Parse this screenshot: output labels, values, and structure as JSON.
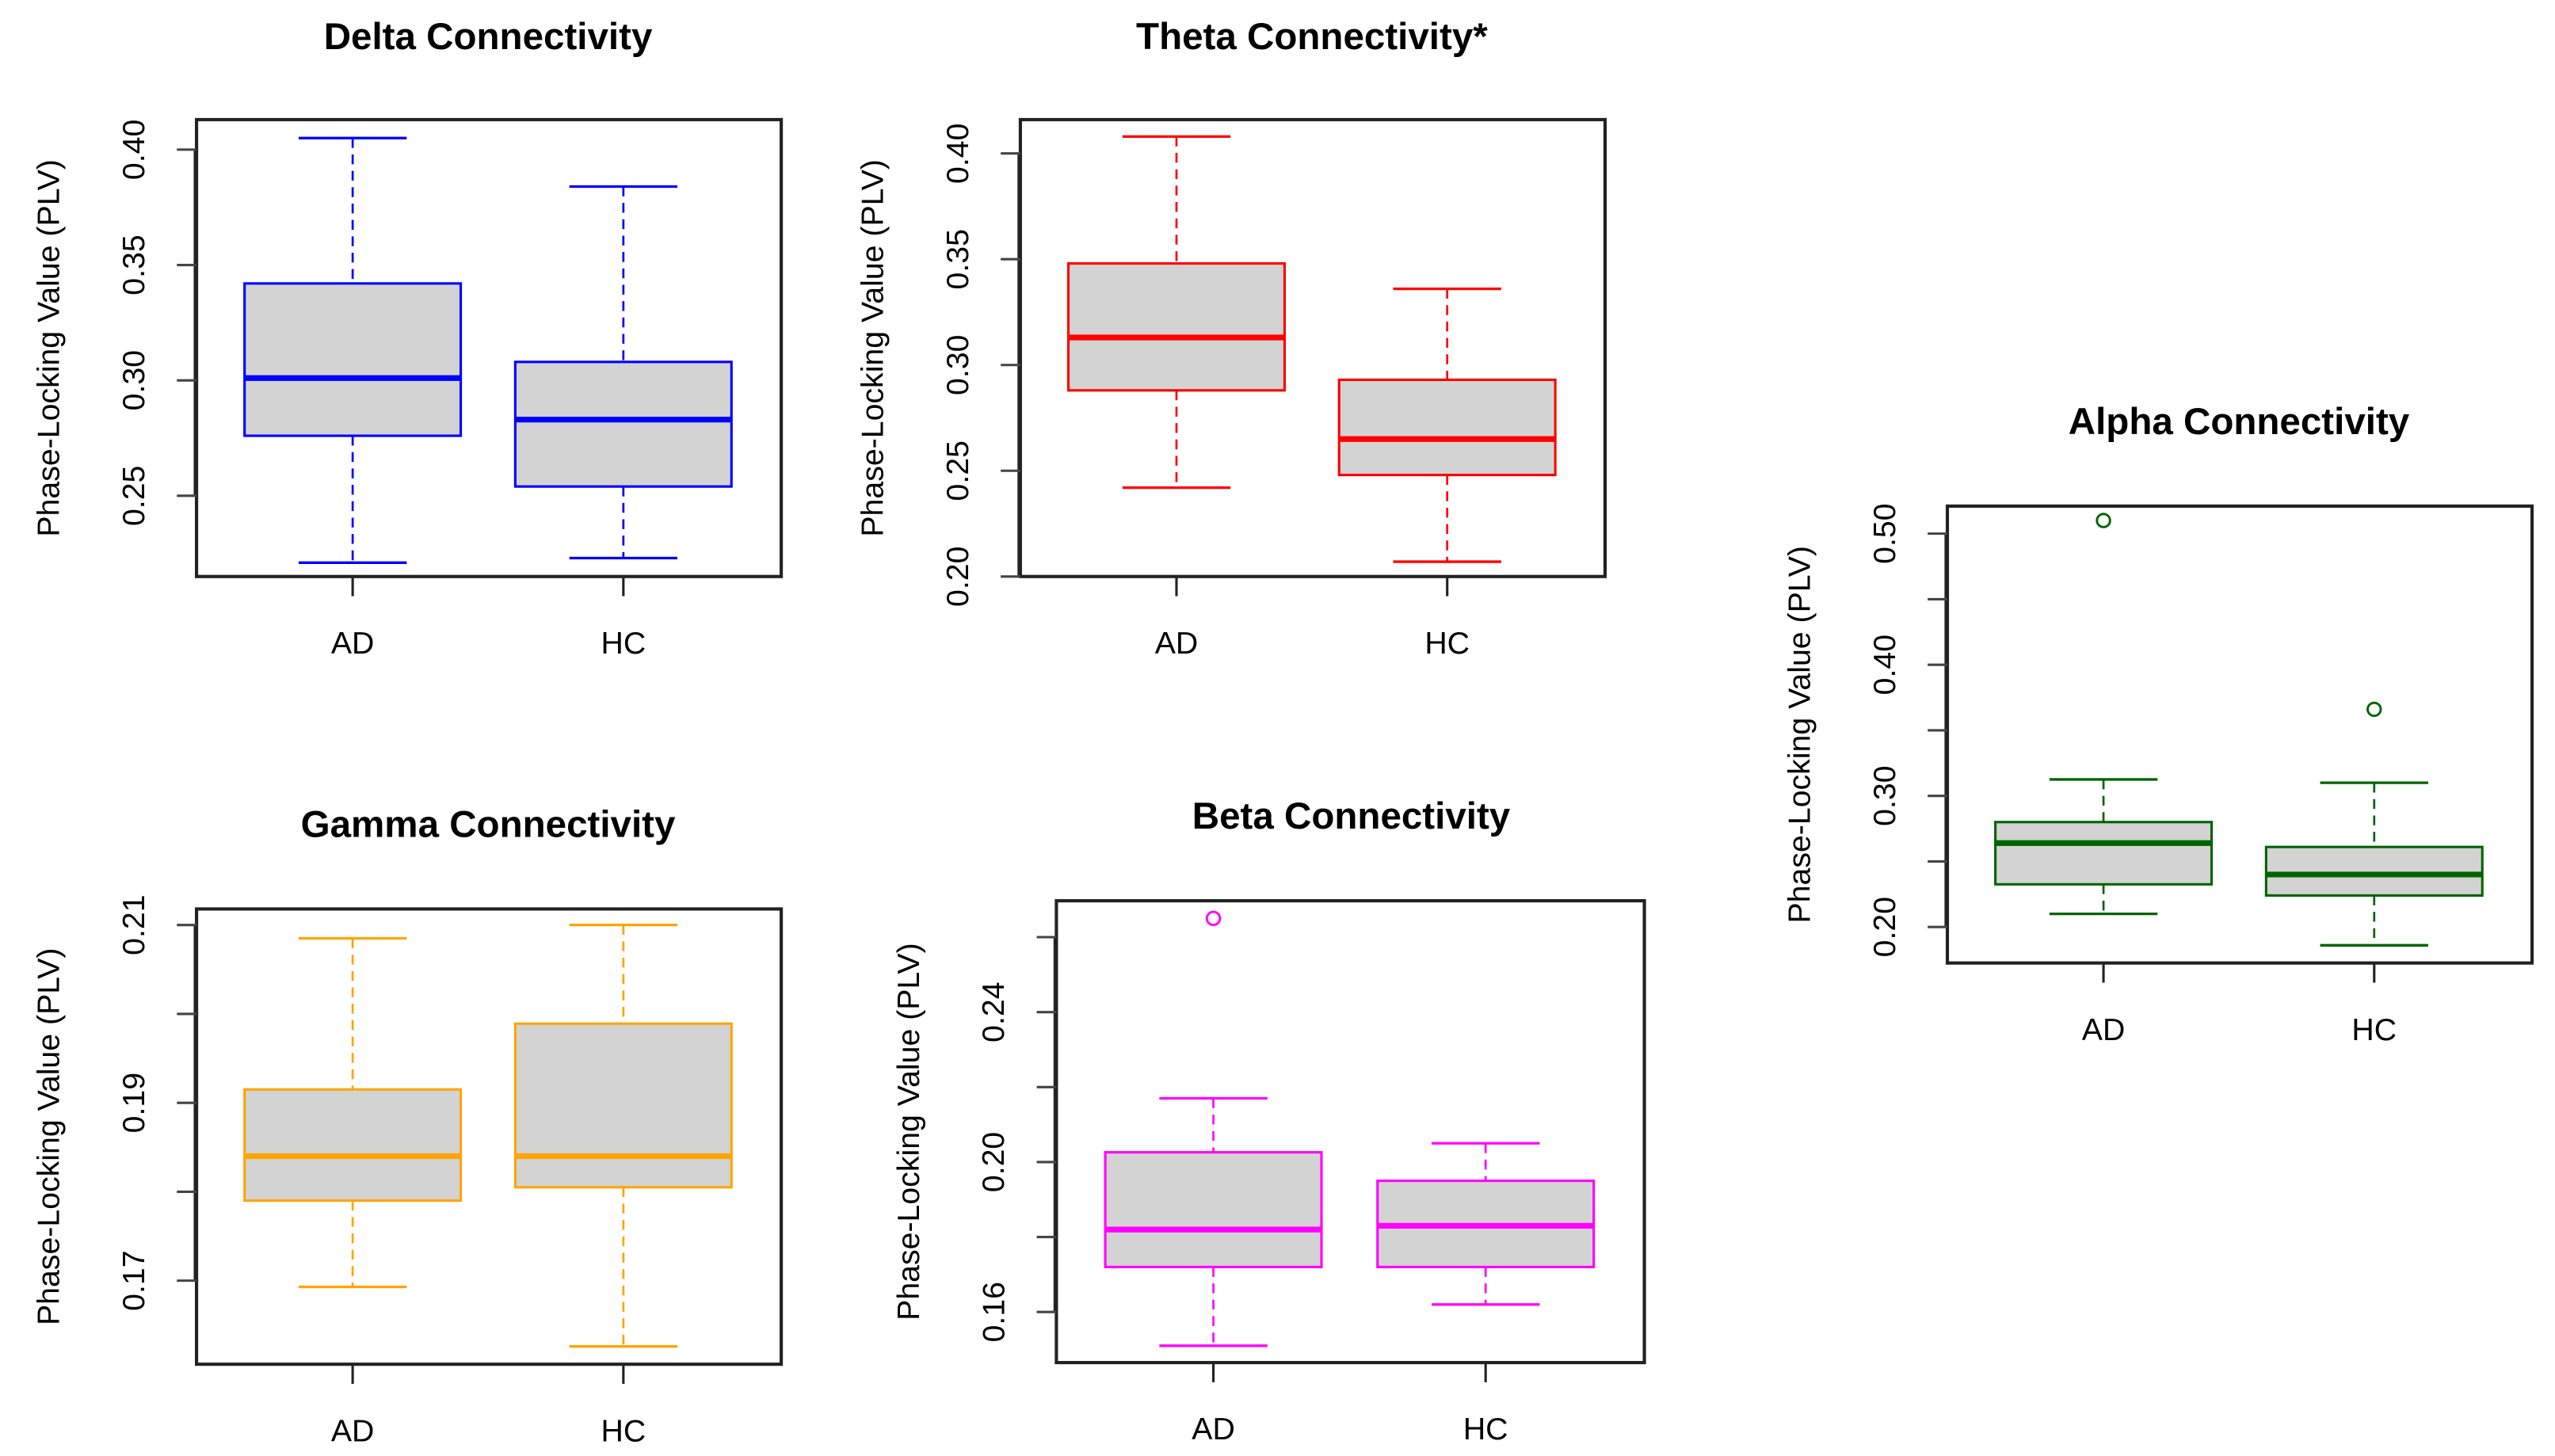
{
  "chart_data": [
    {
      "type": "box",
      "title": "Delta Connectivity",
      "ylabel": "Phase-Locking Value (PLV)",
      "categories": [
        "AD",
        "HC"
      ],
      "color": "#0000ff",
      "fill": "#d3d3d3",
      "ylim": [
        0.215,
        0.413
      ],
      "ticks": [
        0.25,
        0.3,
        0.35,
        0.4
      ],
      "tick_labels": [
        "0.25",
        "0.30",
        "0.35",
        "0.40"
      ],
      "series": [
        {
          "name": "AD",
          "whisker_low": 0.221,
          "q1": 0.276,
          "median": 0.301,
          "q3": 0.342,
          "whisker_high": 0.405,
          "outliers": []
        },
        {
          "name": "HC",
          "whisker_low": 0.223,
          "q1": 0.254,
          "median": 0.283,
          "q3": 0.308,
          "whisker_high": 0.384,
          "outliers": []
        }
      ]
    },
    {
      "type": "box",
      "title": "Theta Connectivity*",
      "ylabel": "Phase-Locking Value (PLV)",
      "categories": [
        "AD",
        "HC"
      ],
      "color": "#ff0000",
      "fill": "#d3d3d3",
      "ylim": [
        0.2,
        0.416
      ],
      "ticks": [
        0.2,
        0.25,
        0.3,
        0.35,
        0.4
      ],
      "tick_labels": [
        "0.20",
        "0.25",
        "0.30",
        "0.35",
        "0.40"
      ],
      "series": [
        {
          "name": "AD",
          "whisker_low": 0.242,
          "q1": 0.288,
          "median": 0.313,
          "q3": 0.348,
          "whisker_high": 0.408,
          "outliers": []
        },
        {
          "name": "HC",
          "whisker_low": 0.207,
          "q1": 0.248,
          "median": 0.265,
          "q3": 0.293,
          "whisker_high": 0.336,
          "outliers": []
        }
      ]
    },
    {
      "type": "box",
      "title": "Alpha Connectivity",
      "ylabel": "Phase-Locking Value (PLV)",
      "categories": [
        "AD",
        "HC"
      ],
      "color": "#006400",
      "fill": "#d3d3d3",
      "ylim": [
        0.1725,
        0.521
      ],
      "ticks": [
        0.2,
        0.25,
        0.3,
        0.35,
        0.4,
        0.45,
        0.5
      ],
      "tick_labels": [
        "0.20",
        "",
        "0.30",
        "",
        "0.40",
        "",
        "0.50"
      ],
      "series": [
        {
          "name": "AD",
          "whisker_low": 0.21,
          "q1": 0.2325,
          "median": 0.264,
          "q3": 0.28,
          "whisker_high": 0.3125,
          "outliers": [
            0.51
          ]
        },
        {
          "name": "HC",
          "whisker_low": 0.186,
          "q1": 0.224,
          "median": 0.24,
          "q3": 0.261,
          "whisker_high": 0.31,
          "outliers": [
            0.366
          ]
        }
      ]
    },
    {
      "type": "box",
      "title": "Gamma Connectivity",
      "ylabel": "Phase-Locking Value (PLV)",
      "categories": [
        "AD",
        "HC"
      ],
      "color": "#ffa500",
      "fill": "#d3d3d3",
      "ylim": [
        0.1606,
        0.2118
      ],
      "ticks": [
        0.17,
        0.18,
        0.19,
        0.2,
        0.21
      ],
      "tick_labels": [
        "0.17",
        "",
        "0.19",
        "",
        "0.21"
      ],
      "series": [
        {
          "name": "AD",
          "whisker_low": 0.1693,
          "q1": 0.179,
          "median": 0.184,
          "q3": 0.1915,
          "whisker_high": 0.2085,
          "outliers": []
        },
        {
          "name": "HC",
          "whisker_low": 0.1626,
          "q1": 0.1805,
          "median": 0.184,
          "q3": 0.1989,
          "whisker_high": 0.21,
          "outliers": []
        }
      ]
    },
    {
      "type": "box",
      "title": "Beta Connectivity",
      "ylabel": "Phase-Locking Value (PLV)",
      "categories": [
        "AD",
        "HC"
      ],
      "color": "#ff00ff",
      "fill": "#d3d3d3",
      "ylim": [
        0.1465,
        0.2697
      ],
      "ticks": [
        0.16,
        0.18,
        0.2,
        0.22,
        0.24,
        0.26
      ],
      "tick_labels": [
        "0.16",
        "",
        "0.20",
        "",
        "0.24",
        ""
      ],
      "series": [
        {
          "name": "AD",
          "whisker_low": 0.151,
          "q1": 0.172,
          "median": 0.182,
          "q3": 0.2026,
          "whisker_high": 0.217,
          "outliers": [
            0.265
          ]
        },
        {
          "name": "HC",
          "whisker_low": 0.162,
          "q1": 0.172,
          "median": 0.183,
          "q3": 0.195,
          "whisker_high": 0.205,
          "outliers": []
        }
      ]
    }
  ]
}
